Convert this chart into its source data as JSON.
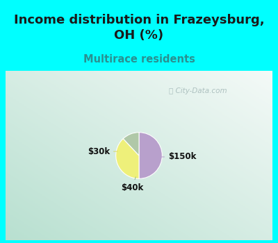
{
  "title": "Income distribution in Frazeysburg,\nOH (%)",
  "subtitle": "Multirace residents",
  "title_color": "#1a1a1a",
  "subtitle_color": "#2a9090",
  "background_color": "#00ffff",
  "panel_gradient_left": "#b8e0d0",
  "panel_gradient_right": "#f0f8f5",
  "slices": [
    {
      "label": "$150k",
      "value": 50,
      "color": "#b8a0cc"
    },
    {
      "label": "$30k",
      "value": 38,
      "color": "#eef07a"
    },
    {
      "label": "$40k",
      "value": 12,
      "color": "#b0c8a8"
    }
  ],
  "watermark": "City-Data.com",
  "startangle": 90,
  "label_fontsize": 8.5,
  "title_fontsize": 13,
  "subtitle_fontsize": 10.5
}
